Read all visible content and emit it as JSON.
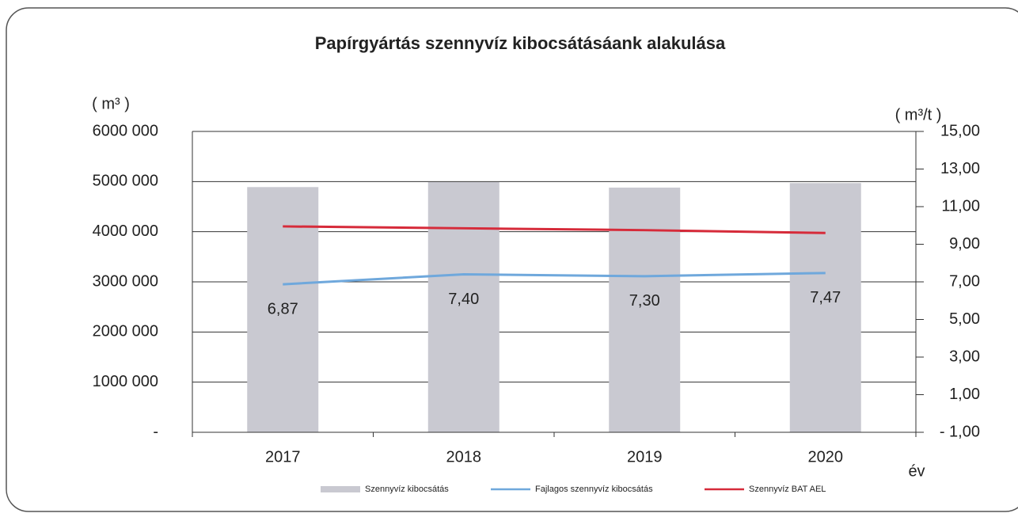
{
  "chart_data": {
    "type": "bar+line",
    "title": "Papírgyártás szennyvíz kibocsátásáank alakulása",
    "y_label": "( m³ )",
    "y2_label": "( m³/t )",
    "x_label": "év",
    "categories": [
      "2017",
      "2018",
      "2019",
      "2020"
    ],
    "ylim": [
      0,
      6000000
    ],
    "yticks": [
      {
        "value": 0,
        "label": "-"
      },
      {
        "value": 1000000,
        "label": "1000 000"
      },
      {
        "value": 2000000,
        "label": "2000 000"
      },
      {
        "value": 3000000,
        "label": "3000 000"
      },
      {
        "value": 4000000,
        "label": "4000 000"
      },
      {
        "value": 5000000,
        "label": "5000 000"
      },
      {
        "value": 6000000,
        "label": "6000 000"
      }
    ],
    "y2lim": [
      -1,
      15
    ],
    "y2ticks": [
      {
        "value": -1,
        "label": "- 1,00"
      },
      {
        "value": 1,
        "label": "1,00"
      },
      {
        "value": 3,
        "label": "3,00"
      },
      {
        "value": 5,
        "label": "5,00"
      },
      {
        "value": 7,
        "label": "7,00"
      },
      {
        "value": 9,
        "label": "9,00"
      },
      {
        "value": 11,
        "label": "11,00"
      },
      {
        "value": 13,
        "label": "13,00"
      },
      {
        "value": 15,
        "label": "15,00"
      }
    ],
    "grid": true,
    "series": [
      {
        "name": "Szennyvíz kibocsátás",
        "type": "bar",
        "color": "#c9c9d1",
        "values": [
          4890000,
          4990000,
          4880000,
          4970000
        ]
      },
      {
        "name": "Fajlagos szennyvíz kibocsátás",
        "type": "line",
        "axis": "y2",
        "color": "#6fa8dc",
        "values": [
          6.87,
          7.4,
          7.3,
          7.47
        ],
        "value_labels": [
          "6,87",
          "7,40",
          "7,30",
          "7,47"
        ]
      },
      {
        "name": "Szennyvíz BAT AEL",
        "type": "line",
        "axis": "y2",
        "color": "#d62b3a",
        "values": [
          9.95,
          9.85,
          9.75,
          9.6
        ]
      }
    ]
  }
}
